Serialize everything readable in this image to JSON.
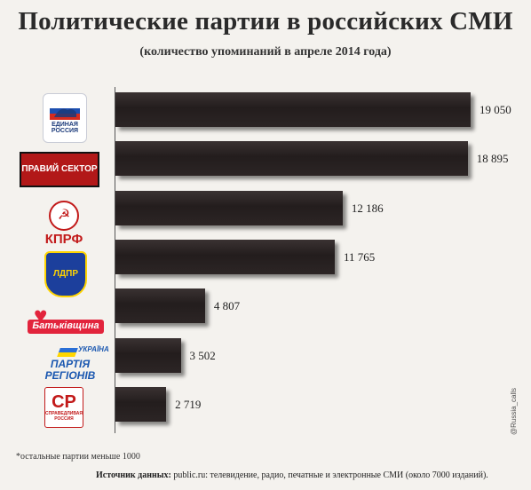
{
  "chart_data": {
    "type": "bar",
    "orientation": "horizontal",
    "title": "Политические партии в российских СМИ",
    "subtitle": "(количество упоминаний в апреле 2014 года)",
    "categories": [
      "ЕДИНАЯ РОССИЯ",
      "ПРАВЫЙ СЕКТОР",
      "КПРФ",
      "ЛДПР",
      "Батьківщина",
      "ПАРТІЯ РЕГІОНІВ",
      "СПРАВЕДЛИВАЯ РОССИЯ"
    ],
    "values": [
      19050,
      18895,
      12186,
      11765,
      4807,
      3502,
      2719
    ],
    "value_labels": [
      "19 050",
      "18 895",
      "12 186",
      "11 765",
      "4 807",
      "3 502",
      "2 719"
    ],
    "xlim": [
      0,
      19050
    ],
    "grid": false,
    "bar_color": "#2a2323"
  },
  "logos": {
    "er": "ЕДИНАЯ РОССИЯ",
    "ps": "ПРАВИЙ СЕКТОР",
    "kprf": "КПРФ",
    "ldpr": "ЛДПР",
    "bat": "Батьківщина",
    "pr_ukr": "УКРАЇНА",
    "pr": "ПАРТІЯ РЕГІОНІВ",
    "sr_big": "СР",
    "sr": "СПРАВЕДЛИВАЯ РОССИЯ"
  },
  "footnote": "*остальные партии меньше 1000",
  "source_label": "Источник данных: ",
  "source_text": "public.ru: телевидение, радио, печатные и электронные СМИ (около 7000 изданий).",
  "credit": "@Russia_calls"
}
